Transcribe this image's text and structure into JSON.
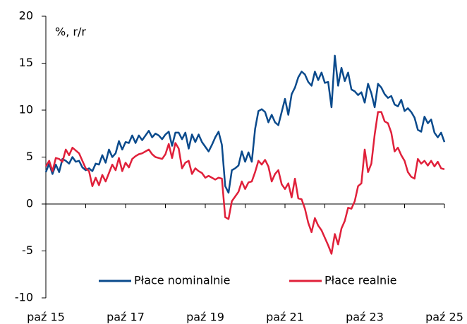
{
  "chart_data": {
    "type": "line",
    "y_label": "%, r/r",
    "categories": [
      "paź 15",
      null,
      null,
      null,
      null,
      null,
      null,
      null,
      null,
      null,
      null,
      null,
      null,
      null,
      null,
      null,
      null,
      null,
      null,
      null,
      null,
      null,
      null,
      null,
      "paź 17",
      null,
      null,
      null,
      null,
      null,
      null,
      null,
      null,
      null,
      null,
      null,
      null,
      null,
      null,
      null,
      null,
      null,
      null,
      null,
      null,
      null,
      null,
      null,
      "paź 19",
      null,
      null,
      null,
      null,
      null,
      null,
      null,
      null,
      null,
      null,
      null,
      null,
      null,
      null,
      null,
      null,
      null,
      null,
      null,
      null,
      null,
      null,
      null,
      "paź 21",
      null,
      null,
      null,
      null,
      null,
      null,
      null,
      null,
      null,
      null,
      null,
      null,
      null,
      null,
      null,
      null,
      null,
      null,
      null,
      null,
      null,
      null,
      null,
      "paź 23",
      null,
      null,
      null,
      null,
      null,
      null,
      null,
      null,
      null,
      null,
      null,
      null,
      null,
      null,
      null,
      null,
      null,
      null,
      null,
      null,
      null,
      null,
      null,
      "paź 25"
    ],
    "series": [
      {
        "name": "Płace nominalnie",
        "color": "#0a4a8c",
        "values": [
          3.4,
          4.3,
          3.2,
          4.2,
          3.4,
          4.8,
          4.6,
          4.3,
          5.0,
          4.5,
          4.6,
          3.9,
          3.6,
          3.8,
          3.5,
          4.3,
          4.2,
          5.2,
          4.4,
          5.8,
          5.0,
          5.4,
          6.7,
          5.8,
          6.6,
          6.5,
          7.3,
          6.5,
          7.3,
          6.8,
          7.3,
          7.8,
          7.1,
          7.5,
          7.3,
          6.9,
          7.4,
          7.7,
          6.2,
          7.6,
          7.6,
          6.9,
          7.6,
          5.9,
          7.4,
          6.6,
          7.4,
          6.6,
          6.1,
          5.6,
          6.3,
          7.1,
          7.7,
          6.3,
          1.9,
          1.2,
          3.6,
          3.8,
          4.1,
          5.6,
          4.5,
          5.5,
          4.5,
          8.0,
          9.9,
          10.1,
          9.8,
          8.7,
          9.5,
          8.7,
          8.4,
          9.8,
          11.2,
          9.5,
          11.7,
          12.4,
          13.5,
          14.1,
          13.8,
          13.0,
          12.6,
          14.1,
          13.2,
          14.0,
          12.9,
          13.0,
          10.3,
          15.8,
          12.6,
          14.5,
          13.1,
          14.0,
          12.2,
          12.0,
          11.6,
          11.9,
          10.8,
          12.8,
          11.8,
          10.3,
          12.8,
          12.4,
          11.7,
          11.3,
          11.5,
          10.6,
          10.4,
          11.1,
          9.9,
          10.2,
          9.8,
          9.2,
          7.9,
          7.7,
          9.3,
          8.6,
          9.0,
          7.6,
          7.1,
          7.6,
          6.6
        ]
      },
      {
        "name": "Płace realnie",
        "color": "#e0203a",
        "values": [
          4.0,
          4.6,
          3.5,
          4.9,
          4.8,
          4.5,
          5.8,
          5.2,
          6.0,
          5.7,
          5.4,
          4.6,
          3.8,
          3.5,
          1.9,
          2.8,
          2.0,
          3.1,
          2.4,
          3.3,
          4.2,
          3.6,
          4.9,
          3.5,
          4.4,
          3.9,
          4.8,
          5.1,
          5.3,
          5.4,
          5.6,
          5.8,
          5.3,
          5.0,
          4.9,
          4.8,
          5.3,
          6.4,
          4.9,
          6.5,
          5.9,
          3.8,
          4.4,
          4.6,
          3.2,
          3.8,
          3.5,
          3.3,
          2.8,
          3.0,
          2.8,
          2.6,
          2.8,
          2.7,
          -1.4,
          -1.6,
          0.3,
          0.8,
          1.3,
          2.4,
          1.6,
          2.3,
          2.4,
          3.4,
          4.6,
          4.2,
          4.7,
          4.0,
          2.4,
          3.2,
          3.6,
          2.1,
          1.6,
          2.2,
          0.7,
          2.7,
          0.6,
          0.5,
          -0.5,
          -2.0,
          -3.0,
          -1.5,
          -2.3,
          -2.8,
          -3.6,
          -4.4,
          -5.3,
          -3.2,
          -4.3,
          -2.6,
          -1.8,
          -0.4,
          -0.5,
          0.3,
          1.9,
          2.2,
          5.8,
          3.4,
          4.3,
          7.4,
          9.8,
          9.8,
          8.8,
          8.6,
          7.6,
          5.6,
          6.0,
          5.2,
          4.6,
          3.4,
          2.9,
          2.7,
          4.8,
          4.3,
          4.6,
          4.1,
          4.6,
          4.0,
          4.5,
          3.8,
          3.7
        ]
      }
    ],
    "ylim": [
      -10,
      20
    ],
    "yticks": [
      -10,
      -5,
      0,
      5,
      10,
      15,
      20
    ],
    "legend": "bottom",
    "grid": false
  }
}
